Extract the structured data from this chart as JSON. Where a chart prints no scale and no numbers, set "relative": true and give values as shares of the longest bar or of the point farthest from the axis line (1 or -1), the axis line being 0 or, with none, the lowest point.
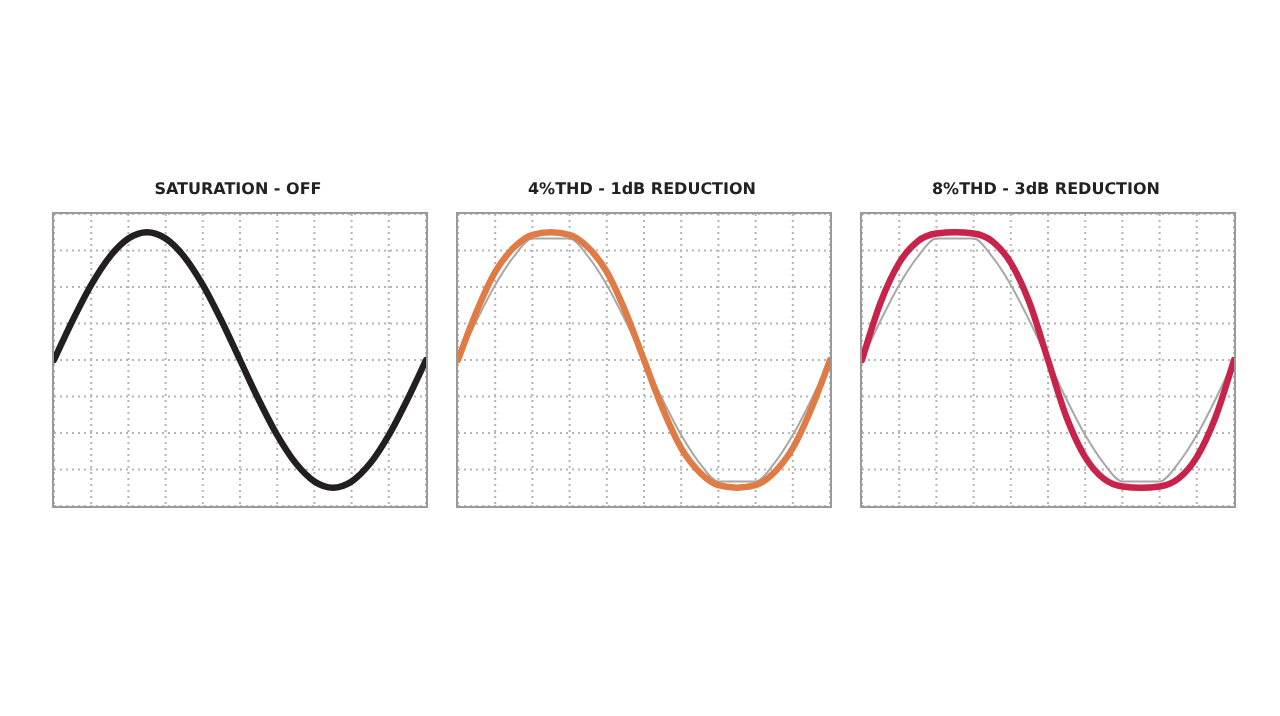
{
  "chart_data": [
    {
      "type": "line",
      "title": "SATURATION - OFF",
      "relative": true,
      "grid": true,
      "categories": [
        null,
        null,
        null,
        null,
        null,
        null,
        null,
        null,
        null,
        null,
        null,
        null,
        null,
        null,
        null,
        null,
        null,
        null,
        null,
        null,
        null
      ],
      "series": [
        {
          "color": "#231f20",
          "values": [
            0,
            0.309,
            0.588,
            0.809,
            0.951,
            1,
            0.951,
            0.809,
            0.588,
            0.309,
            0,
            -0.309,
            -0.588,
            -0.809,
            -0.951,
            -1,
            -0.951,
            -0.809,
            -0.588,
            -0.309,
            0
          ]
        }
      ]
    },
    {
      "type": "line",
      "title": "4%THD - 1dB REDUCTION",
      "relative": true,
      "grid": true,
      "categories": [
        null,
        null,
        null,
        null,
        null,
        null,
        null,
        null,
        null,
        null,
        null,
        null,
        null,
        null,
        null,
        null,
        null,
        null,
        null,
        null,
        null
      ],
      "series": [
        {
          "color": "#a8a8a8",
          "values": [
            0,
            0.309,
            0.588,
            0.809,
            0.951,
            null,
            0.951,
            0.809,
            0.588,
            0.309,
            0,
            -0.309,
            -0.588,
            -0.809,
            -0.951,
            null,
            -0.951,
            -0.809,
            -0.588,
            -0.309,
            0
          ]
        },
        {
          "color": "#e07b45",
          "values": [
            0,
            0.38,
            0.69,
            0.88,
            0.98,
            1,
            0.98,
            0.88,
            0.69,
            0.38,
            0,
            -0.38,
            -0.69,
            -0.88,
            -0.98,
            -1,
            -0.98,
            -0.88,
            -0.69,
            -0.38,
            0
          ]
        }
      ]
    },
    {
      "type": "line",
      "title": "8%THD - 3dB REDUCTION",
      "relative": true,
      "grid": true,
      "categories": [
        null,
        null,
        null,
        null,
        null,
        null,
        null,
        null,
        null,
        null,
        null,
        null,
        null,
        null,
        null,
        null,
        null,
        null,
        null,
        null,
        null
      ],
      "series": [
        {
          "color": "#a8a8a8",
          "values": [
            0,
            0.309,
            0.588,
            0.809,
            0.951,
            null,
            0.951,
            0.809,
            0.588,
            0.309,
            0,
            -0.309,
            -0.588,
            -0.809,
            -0.951,
            null,
            -0.951,
            -0.809,
            -0.588,
            -0.309,
            0
          ]
        },
        {
          "color": "#c8234a",
          "values": [
            0,
            0.45,
            0.76,
            0.93,
            0.99,
            1,
            0.99,
            0.93,
            0.76,
            0.45,
            0,
            -0.45,
            -0.76,
            -0.93,
            -0.99,
            -1,
            -0.99,
            -0.93,
            -0.76,
            -0.45,
            0
          ]
        }
      ]
    }
  ]
}
